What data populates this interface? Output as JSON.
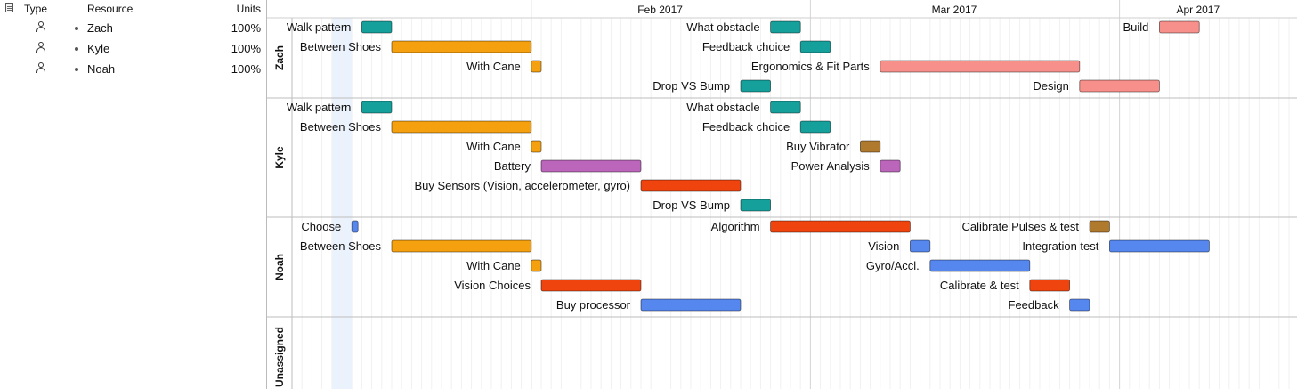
{
  "table": {
    "headers": {
      "type": "Type",
      "resource": "Resource",
      "units": "Units"
    },
    "resources": [
      {
        "name": "Zach",
        "units": "100%"
      },
      {
        "name": "Kyle",
        "units": "100%"
      },
      {
        "name": "Noah",
        "units": "100%"
      }
    ]
  },
  "timeline": {
    "months": [
      "Feb 2017",
      "Mar 2017",
      "Apr 2017"
    ],
    "start_date": "2017-01-08",
    "today_date": "2017-01-14"
  },
  "groups": [
    {
      "name": "Zach",
      "rows": 4,
      "tasks": [
        {
          "label": "Walk pattern",
          "start": "2017-01-15",
          "end": "2017-01-18",
          "color": "#16a09c",
          "row": 0
        },
        {
          "label": "Between Shoes",
          "start": "2017-01-18",
          "end": "2017-02-01",
          "color": "#f5a00f",
          "row": 1
        },
        {
          "label": "With Cane",
          "start": "2017-02-01",
          "end": "2017-02-02",
          "color": "#f5a00f",
          "row": 2
        },
        {
          "label": "What obstacle",
          "start": "2017-02-25",
          "end": "2017-02-28",
          "color": "#16a09c",
          "row": 0
        },
        {
          "label": "Feedback choice",
          "start": "2017-02-28",
          "end": "2017-03-03",
          "color": "#16a09c",
          "row": 1
        },
        {
          "label": "Ergonomics & Fit Parts",
          "start": "2017-03-08",
          "end": "2017-03-28",
          "color": "#f7908a",
          "row": 2
        },
        {
          "label": "Drop VS Bump",
          "start": "2017-02-22",
          "end": "2017-02-25",
          "color": "#16a09c",
          "row": 3
        },
        {
          "label": "Build",
          "start": "2017-04-05",
          "end": "2017-04-09",
          "color": "#f7908a",
          "row": 0
        },
        {
          "label": "Design",
          "start": "2017-03-28",
          "end": "2017-04-05",
          "color": "#f7908a",
          "row": 3
        }
      ]
    },
    {
      "name": "Kyle",
      "rows": 6,
      "tasks": [
        {
          "label": "Walk pattern",
          "start": "2017-01-15",
          "end": "2017-01-18",
          "color": "#16a09c",
          "row": 0
        },
        {
          "label": "Between Shoes",
          "start": "2017-01-18",
          "end": "2017-02-01",
          "color": "#f5a00f",
          "row": 1
        },
        {
          "label": "With Cane",
          "start": "2017-02-01",
          "end": "2017-02-02",
          "color": "#f5a00f",
          "row": 2
        },
        {
          "label": "Battery",
          "start": "2017-02-02",
          "end": "2017-02-12",
          "color": "#bb66bb",
          "row": 3
        },
        {
          "label": "Buy Sensors (Vision, accelerometer, gyro)",
          "start": "2017-02-12",
          "end": "2017-02-22",
          "color": "#f0440e",
          "row": 4
        },
        {
          "label": "Drop VS Bump",
          "start": "2017-02-22",
          "end": "2017-02-25",
          "color": "#16a09c",
          "row": 5
        },
        {
          "label": "What obstacle",
          "start": "2017-02-25",
          "end": "2017-02-28",
          "color": "#16a09c",
          "row": 0
        },
        {
          "label": "Feedback choice",
          "start": "2017-02-28",
          "end": "2017-03-03",
          "color": "#16a09c",
          "row": 1
        },
        {
          "label": "Buy Vibrator",
          "start": "2017-03-06",
          "end": "2017-03-08",
          "color": "#b07a2e",
          "row": 2
        },
        {
          "label": "Power Analysis",
          "start": "2017-03-08",
          "end": "2017-03-10",
          "color": "#bb66bb",
          "row": 3
        }
      ]
    },
    {
      "name": "Noah",
      "rows": 5,
      "tasks": [
        {
          "label": "Choose",
          "start": "2017-01-14",
          "end": "2017-01-14",
          "color": "#5587ee",
          "row": 0
        },
        {
          "label": "Between Shoes",
          "start": "2017-01-18",
          "end": "2017-02-01",
          "color": "#f5a00f",
          "row": 1
        },
        {
          "label": "With Cane",
          "start": "2017-02-01",
          "end": "2017-02-02",
          "color": "#f5a00f",
          "row": 2
        },
        {
          "label": "Vision Choices",
          "start": "2017-02-02",
          "end": "2017-02-12",
          "color": "#f0440e",
          "row": 3
        },
        {
          "label": "Buy processor",
          "start": "2017-02-12",
          "end": "2017-02-22",
          "color": "#5587ee",
          "row": 4
        },
        {
          "label": "Algorithm",
          "start": "2017-02-25",
          "end": "2017-03-11",
          "color": "#f0440e",
          "row": 0
        },
        {
          "label": "Vision",
          "start": "2017-03-11",
          "end": "2017-03-13",
          "color": "#5587ee",
          "row": 1
        },
        {
          "label": "Gyro/Accl.",
          "start": "2017-03-13",
          "end": "2017-03-23",
          "color": "#5587ee",
          "row": 2
        },
        {
          "label": "Calibrate & test",
          "start": "2017-03-23",
          "end": "2017-03-27",
          "color": "#f0440e",
          "row": 3
        },
        {
          "label": "Feedback",
          "start": "2017-03-27",
          "end": "2017-03-29",
          "color": "#5587ee",
          "row": 4
        },
        {
          "label": "Calibrate Pulses & test",
          "start": "2017-03-29",
          "end": "2017-03-31",
          "color": "#b07a2e",
          "row": 0
        },
        {
          "label": "Integration test",
          "start": "2017-03-31",
          "end": "2017-04-10",
          "color": "#5587ee",
          "row": 1
        }
      ]
    },
    {
      "name": "Unassigned",
      "rows": 4,
      "tasks": []
    }
  ]
}
